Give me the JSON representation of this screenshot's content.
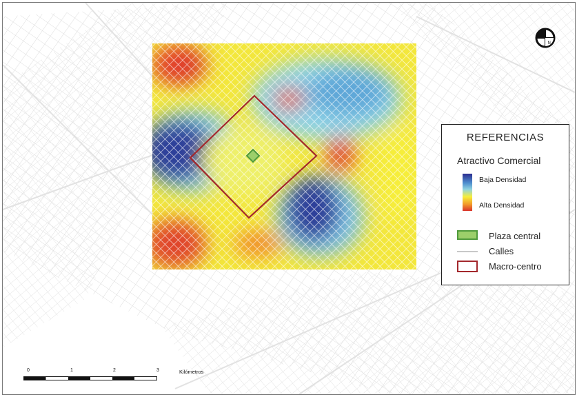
{
  "legend": {
    "title": "REFERENCIAS",
    "subtitle": "Atractivo Comercial",
    "ramp_low_label": "Baja Densidad",
    "ramp_high_label": "Alta Densidad",
    "ramp_colors": [
      "#2b2d8f",
      "#4f8fcf",
      "#8fd3e0",
      "#f6ee3a",
      "#f29a2a",
      "#d9342b"
    ],
    "items": [
      {
        "label": "Plaza central",
        "symbol": "green-square",
        "fill": "#9ccf6a",
        "stroke": "#4f9a3c"
      },
      {
        "label": "Calles",
        "symbol": "gray-line",
        "color": "#c8c8c8"
      },
      {
        "label": "Macro-centro",
        "symbol": "red-square-outline",
        "stroke": "#a3272c"
      }
    ]
  },
  "north_arrow": {
    "label": "N",
    "icon": "north-arrow-icon"
  },
  "scale_bar": {
    "ticks": [
      "0",
      "1",
      "2",
      "3"
    ],
    "units": "Kilómetros"
  },
  "colors": {
    "street_lines": "#dcdcdc",
    "macro_centro": "#a3272c",
    "plaza_central": "#9ccf6a"
  }
}
